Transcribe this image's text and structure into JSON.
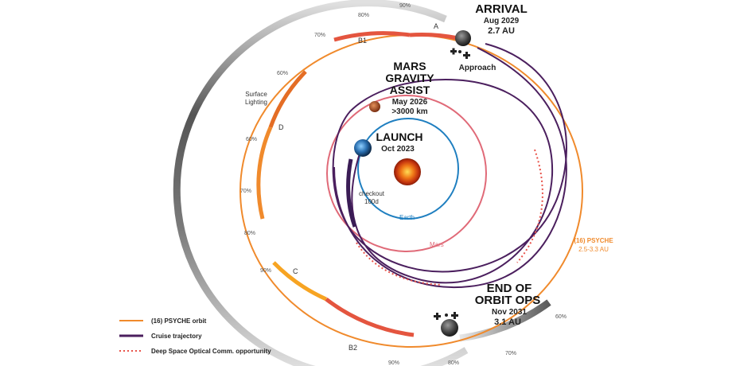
{
  "colors": {
    "psyche_orbit": "#f08a2c",
    "cruise": "#4b1f5e",
    "optical": "#e8534a",
    "earth_orbit": "#1f7fc0",
    "mars_orbit": "#e06a78",
    "lighting_dark": "#555555",
    "lighting_light": "#d8d8d8"
  },
  "labels": {
    "arrival_title": "ARRIVAL",
    "arrival_date": "Aug 2029",
    "arrival_dist": "2.7 AU",
    "approach": "Approach",
    "mars_title_1": "MARS",
    "mars_title_2": "GRAVITY",
    "mars_title_3": "ASSIST",
    "mars_date": "May 2026",
    "mars_dist": ">3000 km",
    "launch_title": "LAUNCH",
    "launch_date": "Oct 2023",
    "checkout_1": "checkout",
    "checkout_2": "100d",
    "earth": "Earth",
    "mars": "Mars",
    "psyche_1": "(16) PSYCHE",
    "psyche_2": "2.5-3.3 AU",
    "end_1": "END OF",
    "end_2": "ORBIT OPS",
    "end_date": "Nov 2031",
    "end_dist": "3.1 AU",
    "surface_1": "Surface",
    "surface_2": "Lighting"
  },
  "segments": {
    "a": "A",
    "b1": "B1",
    "b2": "B2",
    "c": "C",
    "d": "D"
  },
  "lighting_percents": {
    "p1": "90%",
    "p2": "80%",
    "p3": "70%",
    "p4": "60%",
    "p5": "60%",
    "p6": "70%",
    "p7": "80%",
    "p8": "90%",
    "p9": "90%",
    "p10": "80%",
    "p11": "70%",
    "p12": "60%"
  },
  "legend": [
    {
      "label": "(16) PSYCHE orbit"
    },
    {
      "label": "Cruise trajectory"
    },
    {
      "label": "Deep Space Optical Comm. opportunity"
    }
  ]
}
